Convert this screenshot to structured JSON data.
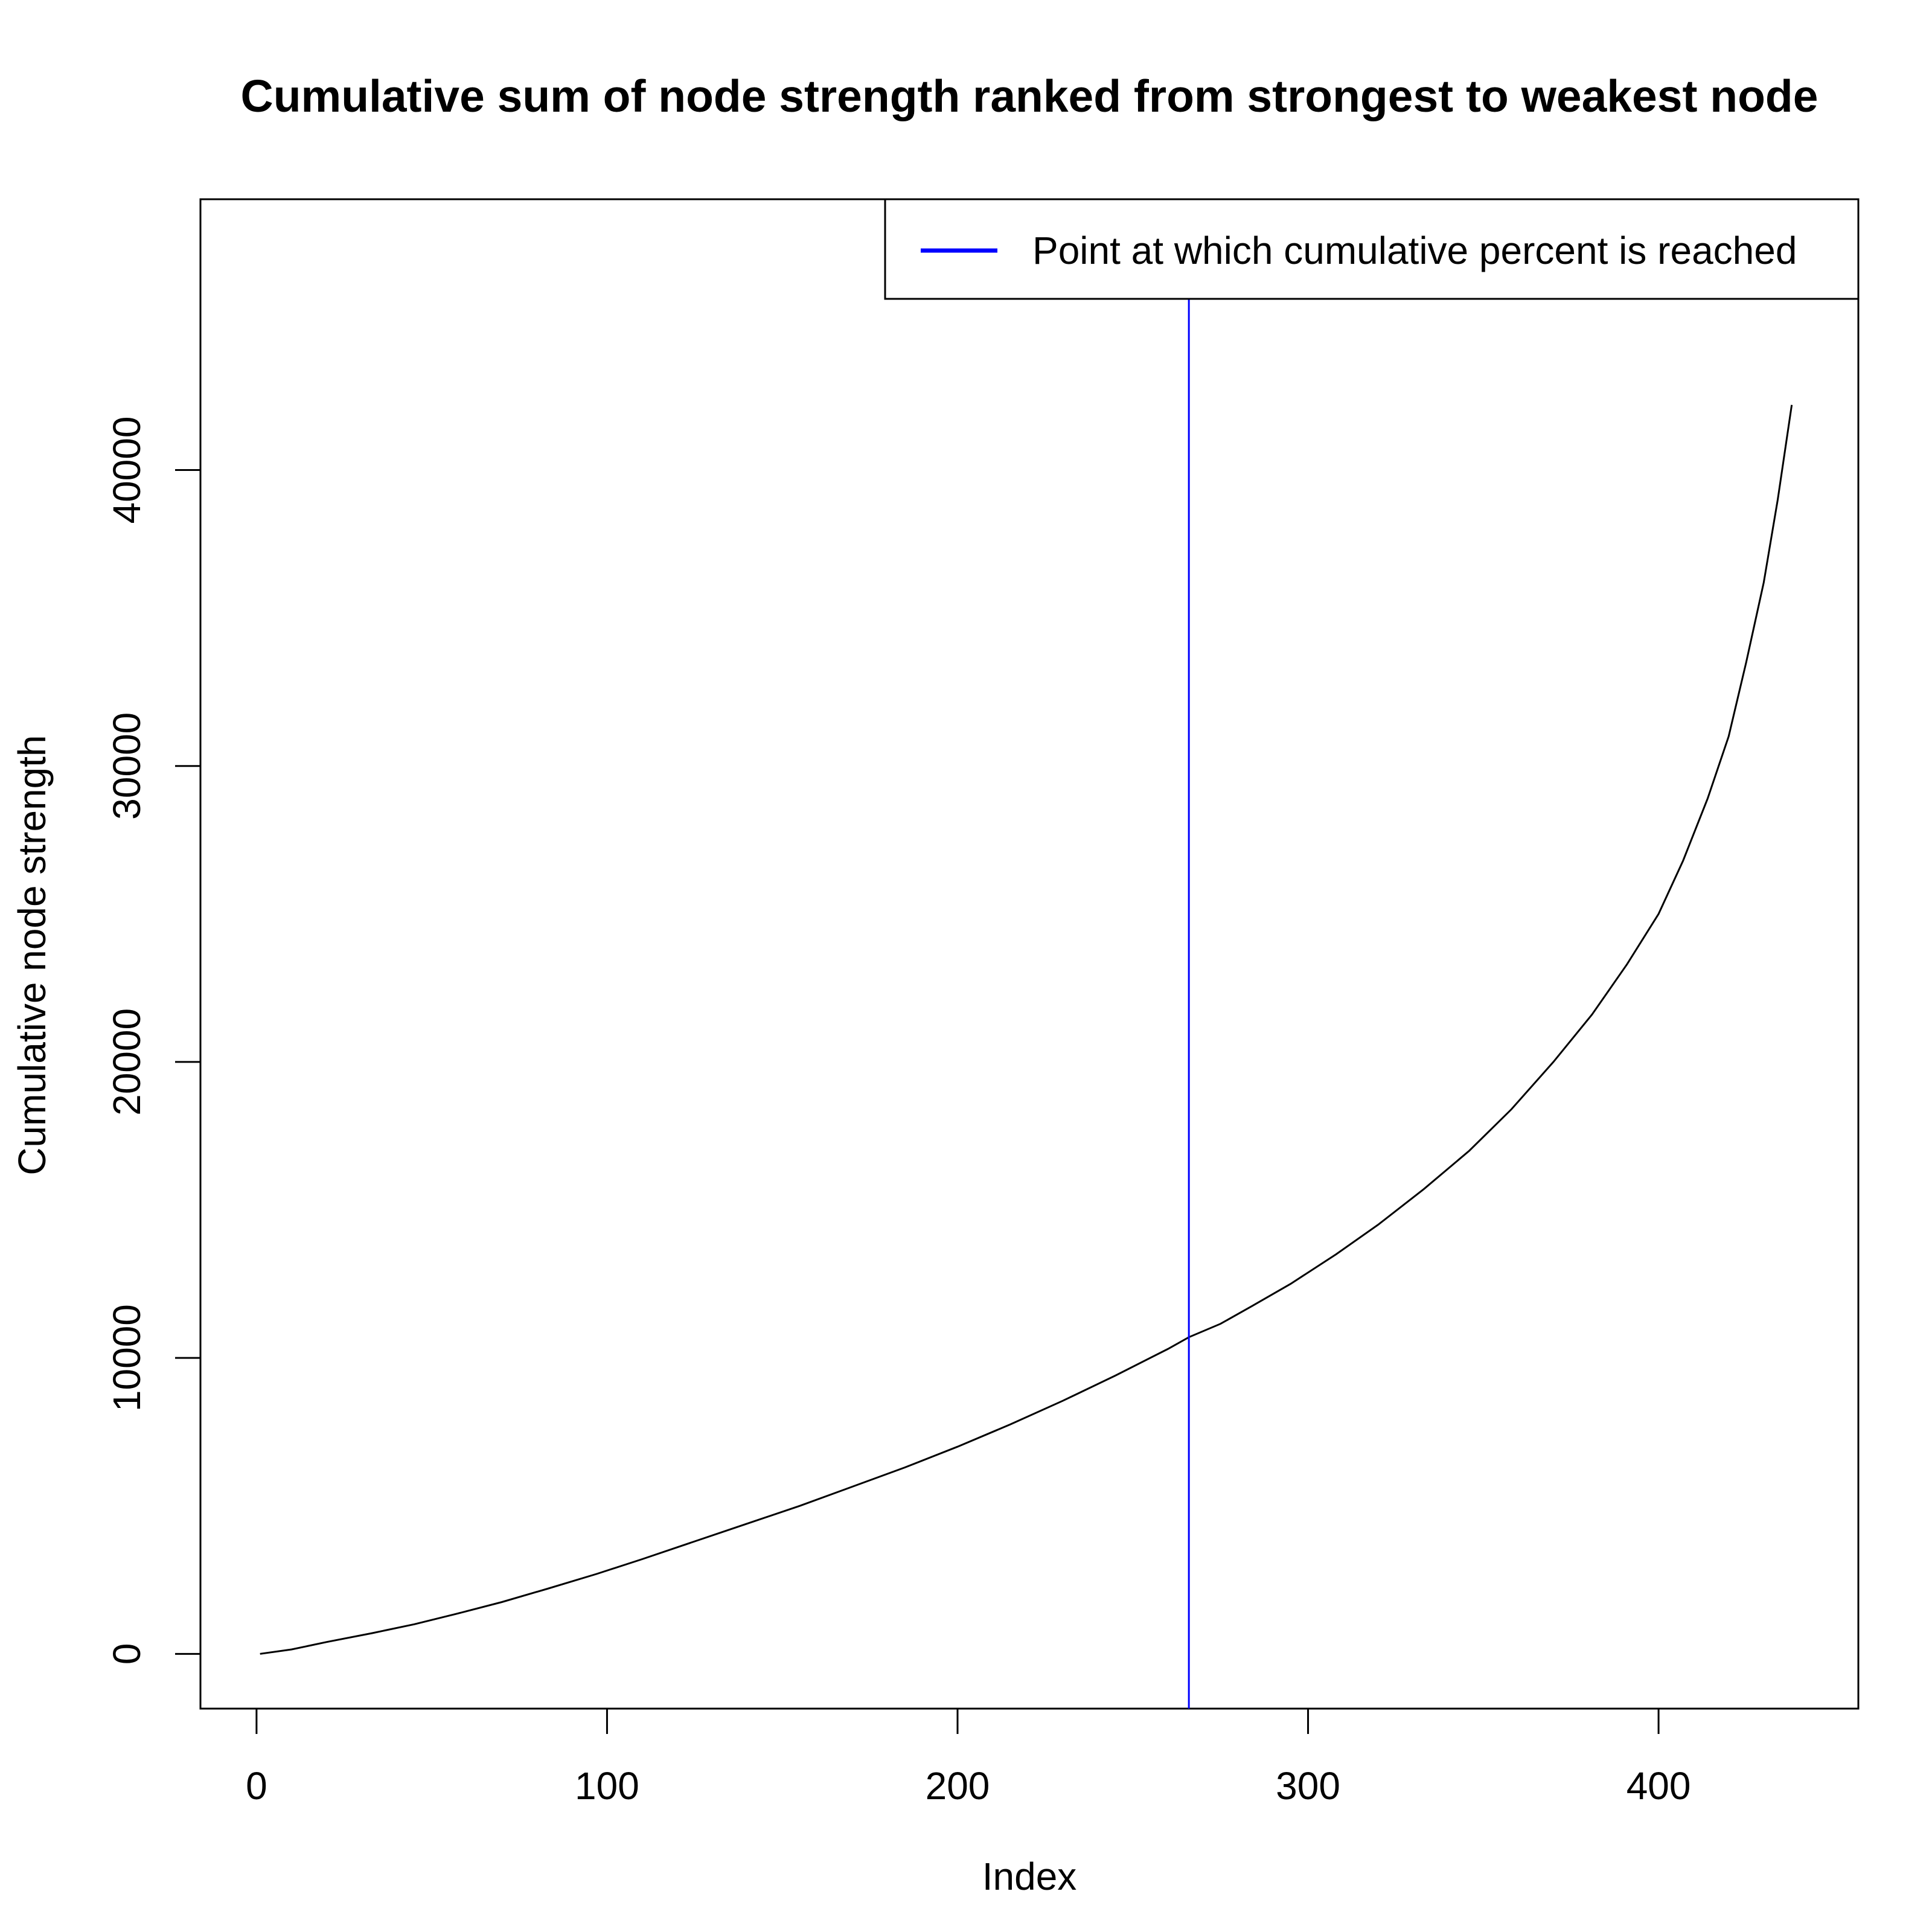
{
  "chart_data": {
    "type": "line",
    "title": "Cumulative sum of node strength ranked from strongest to weakest node",
    "xlabel": "Index",
    "ylabel": "Cumulative node strength",
    "xlim": [
      -16,
      457
    ],
    "ylim": [
      -1850,
      49150
    ],
    "x_ticks": [
      0,
      100,
      200,
      300,
      400
    ],
    "y_ticks": [
      0,
      10000,
      20000,
      30000,
      40000
    ],
    "grid": false,
    "legend": {
      "position": "top-right",
      "entries": [
        {
          "label": "Point at which cumulative percent is reached",
          "color": "#0000ff"
        }
      ]
    },
    "series": [
      {
        "color": "#000000",
        "x": [
          1,
          10,
          20,
          33,
          45,
          57,
          70,
          83,
          97,
          110,
          125,
          140,
          155,
          170,
          185,
          200,
          215,
          230,
          245,
          260,
          266,
          275,
          284,
          295,
          308,
          320,
          333,
          346,
          358,
          370,
          381,
          391,
          400,
          407,
          414,
          420,
          425,
          430,
          434,
          438
        ],
        "y": [
          0,
          150,
          400,
          700,
          1000,
          1350,
          1750,
          2200,
          2700,
          3200,
          3800,
          4400,
          5000,
          5650,
          6300,
          7000,
          7750,
          8550,
          9400,
          10300,
          10700,
          11150,
          11750,
          12500,
          13500,
          14500,
          15700,
          17000,
          18400,
          20000,
          21600,
          23300,
          25000,
          26800,
          28900,
          31000,
          33500,
          36200,
          39000,
          42200
        ]
      }
    ],
    "vline": {
      "x": 266,
      "color": "#0000ff"
    }
  }
}
